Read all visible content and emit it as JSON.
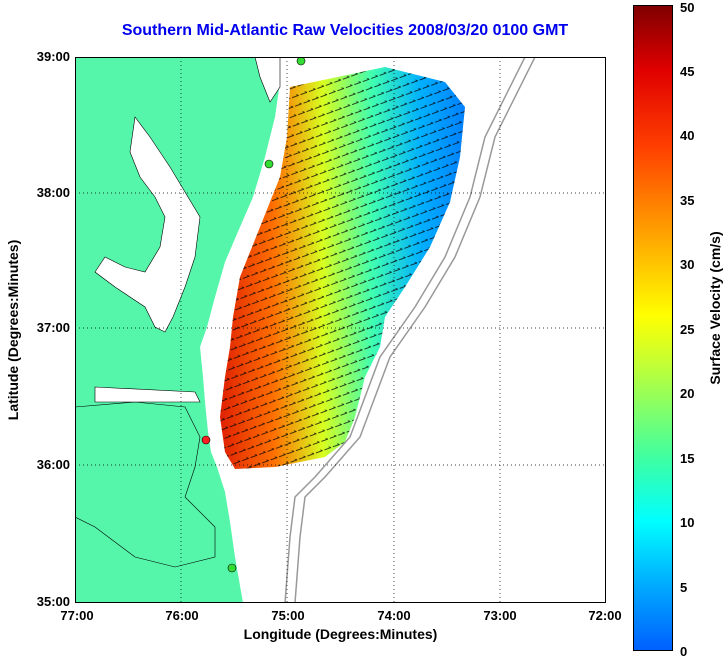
{
  "title": "Southern Mid-Atlantic Raw Velocities 2008/03/20 0100 GMT",
  "xlabel": "Longitude (Degrees:Minutes)",
  "ylabel": "Latitude (Degrees:Minutes)",
  "xticks": [
    "77:00",
    "76:00",
    "75:00",
    "74:00",
    "73:00",
    "72:00"
  ],
  "yticks": [
    "39:00",
    "38:00",
    "37:00",
    "36:00",
    "35:00"
  ],
  "colorbar": {
    "label": "Surface Velocity (cm/s)",
    "ticks": [
      "0",
      "5",
      "10",
      "15",
      "20",
      "25",
      "30",
      "35",
      "40",
      "45",
      "50"
    ]
  },
  "colors": {
    "land": "#55f5aa",
    "title": "#0000ee",
    "station_green": "#33dd33",
    "station_red": "#ff2020"
  }
}
